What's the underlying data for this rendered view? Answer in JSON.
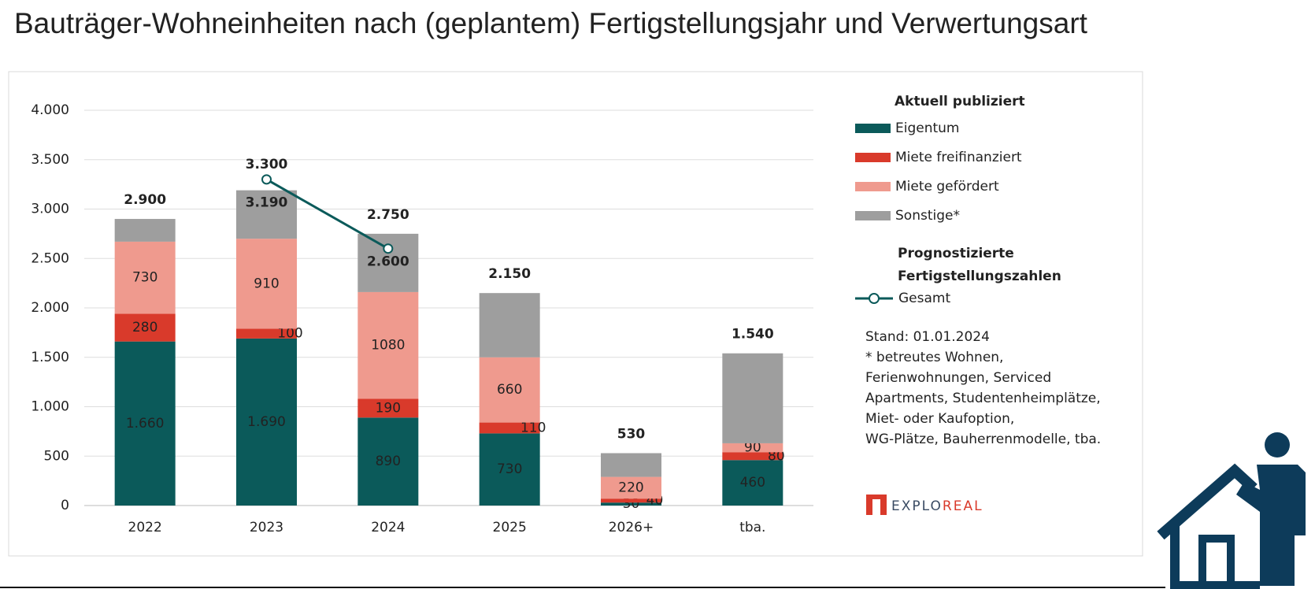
{
  "chart_data": {
    "type": "stacked-bar",
    "title": "Bauträger-Wohneinheiten nach (geplantem) Fertigstellungsjahr und Verwertungsart",
    "categories": [
      "2022",
      "2023",
      "2024",
      "2025",
      "2026+",
      "tba."
    ],
    "ylim": [
      0,
      4000
    ],
    "yticks": [
      0,
      500,
      {
        "value": 1000,
        "label": "1.000"
      },
      {
        "value": 1500,
        "label": "1.500"
      },
      {
        "value": 2000,
        "label": "2.000"
      },
      {
        "value": 2500,
        "label": "2.500"
      },
      {
        "value": 3000,
        "label": "3.000"
      },
      {
        "value": 3500,
        "label": "3.500"
      },
      {
        "value": 4000,
        "label": "4.000"
      }
    ],
    "grid": true,
    "legend_title": "Aktuell publiziert",
    "series": [
      {
        "name": "Eigentum",
        "color": "#0b5a5a",
        "values": [
          1660,
          1690,
          890,
          730,
          30,
          460
        ],
        "value_labels": [
          "1.660",
          "1.690",
          "890",
          "730",
          "30",
          "460"
        ]
      },
      {
        "name": "Miete freifinanziert",
        "color": "#d93a2b",
        "values": [
          280,
          100,
          190,
          110,
          40,
          80
        ]
      },
      {
        "name": "Miete gefördert",
        "color": "#ef9a8e",
        "values": [
          730,
          910,
          1080,
          660,
          220,
          90
        ]
      },
      {
        "name": "Sonstige*",
        "color": "#9e9e9e",
        "values": [
          230,
          490,
          590,
          650,
          240,
          910
        ]
      }
    ],
    "totals": {
      "values": [
        2900,
        3190,
        2750,
        2150,
        530,
        1540
      ],
      "value_labels": [
        "2.900",
        "3.190",
        "2.750",
        "2.150",
        "530",
        "1.540"
      ]
    },
    "line": {
      "legend_title": "Prognostizierte Fertigstellungszahlen",
      "name": "Gesamt",
      "color": "#0b5a5a",
      "values": [
        null,
        3300,
        2600,
        null,
        null,
        null
      ],
      "value_labels": [
        null,
        "3.300",
        "2.600",
        null,
        null,
        null
      ]
    },
    "notes": [
      "Stand: 01.01.2024",
      "* betreutes Wohnen,",
      "Ferienwohnungen, Serviced",
      "Apartments, Studentenheimplätze,",
      "Miet- oder Kaufoption,",
      "WG-Plätze, Bauherrenmodelle, tba."
    ],
    "logo": [
      "EXPLO",
      "REAL"
    ]
  }
}
